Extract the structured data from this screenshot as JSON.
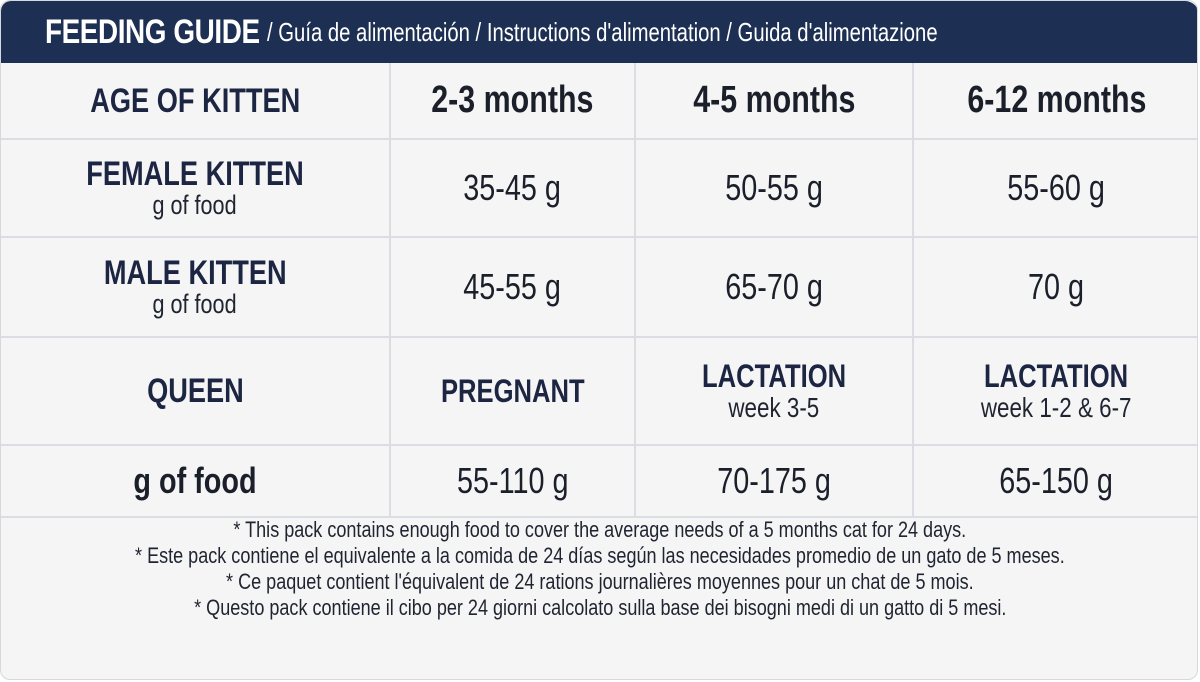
{
  "header": {
    "title": "FEEDING GUIDE",
    "subtitle": "/ Guía de alimentación / Instructions d'alimentation / Guida d'alimentazione"
  },
  "table": {
    "age_header": {
      "label": "AGE OF KITTEN",
      "columns": [
        "2-3 months",
        "4-5 months",
        "6-12 months"
      ]
    },
    "female": {
      "label": "FEMALE KITTEN",
      "unit": "g of food",
      "values": [
        "35-45 g",
        "50-55 g",
        "55-60 g"
      ]
    },
    "male": {
      "label": "MALE KITTEN",
      "unit": "g of food",
      "values": [
        "45-55 g",
        "65-70 g",
        "70 g"
      ]
    },
    "queen": {
      "label": "QUEEN",
      "stages": [
        {
          "title": "PREGNANT",
          "sub": ""
        },
        {
          "title": "LACTATION",
          "sub": "week 3-5"
        },
        {
          "title": "LACTATION",
          "sub": "week 1-2 & 6-7"
        }
      ]
    },
    "queen_food": {
      "label": "g of food",
      "values": [
        "55-110 g",
        "70-175 g",
        "65-150 g"
      ]
    }
  },
  "notes": [
    "* This pack contains enough food to cover the average needs of a 5 months cat for 24 days.",
    "* Este pack contiene el equivalente a la comida de 24 días según las necesidades promedio de un gato de 5 meses.",
    "* Ce paquet contient l'équivalent de 24 rations journalières moyennes pour un chat de 5 mois.",
    "* Questo pack contiene il cibo per 24 giorni calcolato sulla base dei bisogni medi di un gatto di 5 mesi."
  ],
  "colors": {
    "header_bg": "#1d3053",
    "card_bg": "#f5f5f6",
    "grid_line": "#dcdde2",
    "text_dark": "#1b1f2a"
  }
}
